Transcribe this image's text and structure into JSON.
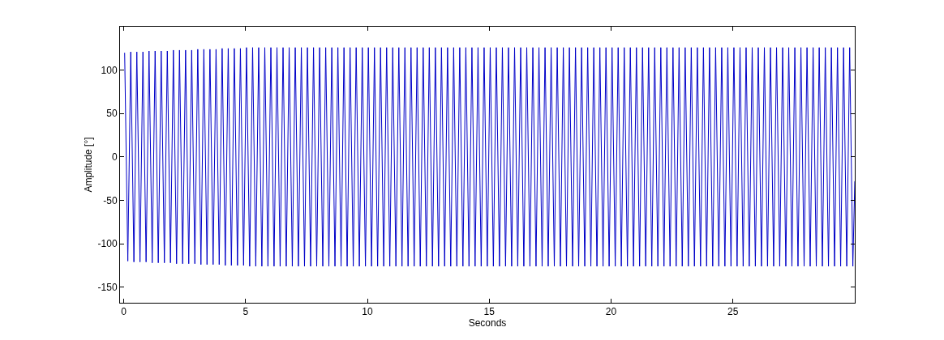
{
  "chart_data": {
    "type": "line",
    "xlabel": "Seconds",
    "ylabel": "Amplitude [°]",
    "xlim": [
      -0.15,
      30
    ],
    "ylim": [
      -168,
      150
    ],
    "xticks": [
      0,
      5,
      10,
      15,
      20,
      25
    ],
    "yticks": [
      -150,
      -100,
      -50,
      0,
      50,
      100
    ],
    "marker": "none",
    "line_style": "solid",
    "series": [
      {
        "color": "#0000c8",
        "x": [
          0.04,
          0.17,
          0.29,
          0.42,
          0.54,
          0.67,
          0.79,
          0.92,
          1.04,
          1.17,
          1.29,
          1.42,
          1.54,
          1.67,
          1.79,
          1.92,
          2.04,
          2.17,
          2.29,
          2.42,
          2.54,
          2.67,
          2.79,
          2.92,
          3.04,
          3.17,
          3.29,
          3.42,
          3.54,
          3.67,
          3.79,
          3.92,
          4.04,
          4.17,
          4.29,
          4.42,
          4.54,
          4.67,
          4.79,
          4.92,
          5.04,
          5.17,
          5.29,
          5.42,
          5.54,
          5.67,
          5.79,
          5.92,
          6.04,
          6.17,
          6.29,
          6.42,
          6.54,
          6.67,
          6.79,
          6.92,
          7.04,
          7.17,
          7.29,
          7.42,
          7.54,
          7.67,
          7.79,
          7.92,
          8.04,
          8.17,
          8.29,
          8.42,
          8.54,
          8.67,
          8.79,
          8.92,
          9.04,
          9.17,
          9.29,
          9.42,
          9.54,
          9.67,
          9.79,
          9.92,
          10.04,
          10.17,
          10.29,
          10.42,
          10.54,
          10.67,
          10.79,
          10.92,
          11.04,
          11.17,
          11.29,
          11.42,
          11.54,
          11.67,
          11.79,
          11.92,
          12.04,
          12.17,
          12.29,
          12.42,
          12.54,
          12.67,
          12.79,
          12.92,
          13.04,
          13.17,
          13.29,
          13.42,
          13.54,
          13.67,
          13.79,
          13.92,
          14.04,
          14.17,
          14.29,
          14.42,
          14.54,
          14.67,
          14.79,
          14.92,
          15.04,
          15.17,
          15.29,
          15.42,
          15.54,
          15.67,
          15.79,
          15.92,
          16.04,
          16.17,
          16.29,
          16.42,
          16.54,
          16.67,
          16.79,
          16.92,
          17.04,
          17.17,
          17.29,
          17.42,
          17.54,
          17.67,
          17.79,
          17.92,
          18.04,
          18.17,
          18.29,
          18.42,
          18.54,
          18.67,
          18.79,
          18.92,
          19.04,
          19.17,
          19.29,
          19.42,
          19.54,
          19.67,
          19.79,
          19.92,
          20.04,
          20.17,
          20.29,
          20.42,
          20.54,
          20.67,
          20.79,
          20.92,
          21.04,
          21.17,
          21.29,
          21.42,
          21.54,
          21.67,
          21.79,
          21.92,
          22.04,
          22.17,
          22.29,
          22.42,
          22.54,
          22.67,
          22.79,
          22.92,
          23.04,
          23.17,
          23.29,
          23.42,
          23.54,
          23.67,
          23.79,
          23.92,
          24.04,
          24.17,
          24.29,
          24.42,
          24.54,
          24.67,
          24.79,
          24.92,
          25.04,
          25.17,
          25.29,
          25.42,
          25.54,
          25.67,
          25.79,
          25.92,
          26.04,
          26.17,
          26.29,
          26.42,
          26.54,
          26.67,
          26.79,
          26.92,
          27.04,
          27.17,
          27.29,
          27.42,
          27.54,
          27.67,
          27.79,
          27.92,
          28.04,
          28.17,
          28.29,
          28.42,
          28.54,
          28.67,
          28.79,
          28.92,
          29.04,
          29.17,
          29.29,
          29.42,
          29.54,
          29.67,
          29.79,
          29.92,
          30
        ],
        "values": [
          120,
          -120,
          121,
          -121,
          121,
          -121,
          121,
          -121,
          122,
          -122,
          122,
          -122,
          122,
          -122,
          122,
          -122,
          123,
          -123,
          123,
          -123,
          123,
          -123,
          123,
          -123,
          124,
          -124,
          124,
          -124,
          124,
          -124,
          124,
          -124,
          125,
          -125,
          125,
          -125,
          125,
          -125,
          125,
          -125,
          126,
          -126,
          126,
          -126,
          126,
          -126,
          126,
          -126,
          126,
          -126,
          126,
          -126,
          126,
          -126,
          126,
          -126,
          126,
          -126,
          126,
          -126,
          126,
          -126,
          126,
          -126,
          126,
          -126,
          126,
          -126,
          126,
          -126,
          126,
          -126,
          126,
          -126,
          126,
          -126,
          126,
          -126,
          126,
          -126,
          126,
          -126,
          126,
          -126,
          126,
          -126,
          126,
          -126,
          126,
          -126,
          126,
          -126,
          126,
          -126,
          126,
          -126,
          126,
          -126,
          126,
          -126,
          126,
          -126,
          126,
          -126,
          126,
          -126,
          126,
          -126,
          126,
          -126,
          126,
          -126,
          126,
          -126,
          126,
          -126,
          126,
          -126,
          126,
          -126,
          126,
          -126,
          126,
          -126,
          126,
          -126,
          126,
          -126,
          126,
          -126,
          126,
          -126,
          126,
          -126,
          126,
          -126,
          126,
          -126,
          126,
          -126,
          126,
          -126,
          126,
          -126,
          126,
          -126,
          126,
          -126,
          126,
          -126,
          126,
          -126,
          126,
          -126,
          126,
          -126,
          126,
          -126,
          126,
          -126,
          126,
          -126,
          126,
          -126,
          126,
          -126,
          126,
          -126,
          126,
          -126,
          126,
          -126,
          126,
          -126,
          126,
          -126,
          126,
          -126,
          126,
          -126,
          126,
          -126,
          126,
          -126,
          126,
          -126,
          126,
          -126,
          126,
          -126,
          126,
          -126,
          126,
          -126,
          126,
          -126,
          126,
          -126,
          126,
          -126,
          126,
          -126,
          126,
          -126,
          126,
          -126,
          126,
          -126,
          126,
          -126,
          126,
          -126,
          126,
          -126,
          126,
          -126,
          126,
          -126,
          126,
          -126,
          126,
          -126,
          126,
          -126,
          126,
          -126,
          126,
          -126,
          126,
          -126,
          126,
          -126,
          126,
          -126,
          126,
          -126,
          126,
          -126,
          126,
          -126,
          -28
        ]
      }
    ]
  }
}
